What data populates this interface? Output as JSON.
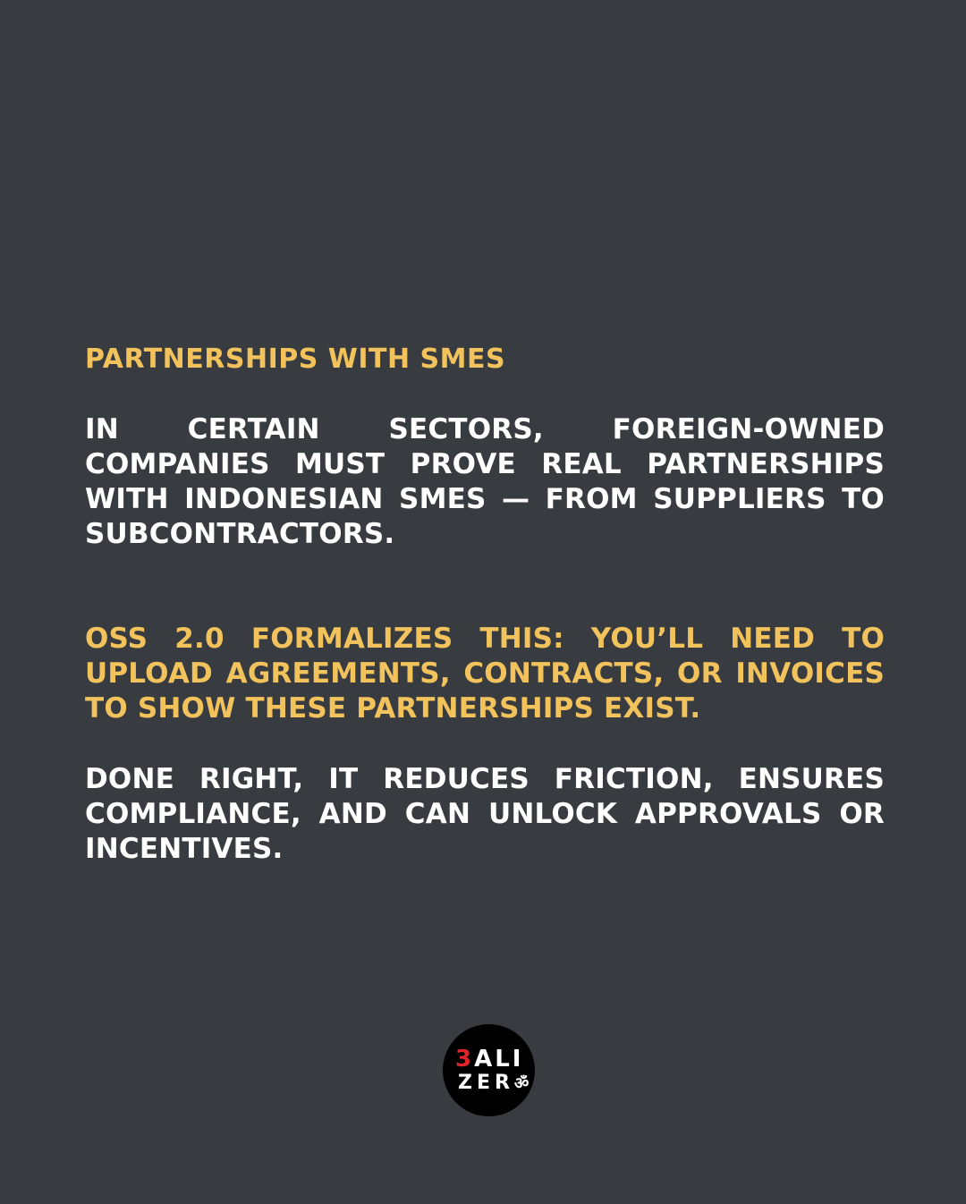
{
  "slide": {
    "heading": "PARTNERSHIPS WITH SMES",
    "paragraph1": "IN CERTAIN SECTORS, FOREIGN-OWNED COMPANIES MUST PROVE REAL PARTNERSHIPS WITH INDONESIAN SMES — FROM SUPPLIERS TO SUBCONTRACTORS.",
    "paragraph2": "OSS 2.0 FORMALIZES THIS: YOU’LL NEED TO UPLOAD AGREEMENTS, CONTRACTS, OR INVOICES TO SHOW THESE PARTNERSHIPS EXIST.",
    "paragraph3": "DONE RIGHT, IT REDUCES FRICTION, ENSURES COMPLIANCE, AND CAN UNLOCK APPROVALS OR INCENTIVES."
  },
  "logo": {
    "first_char": "3",
    "line1_rest": "ALI",
    "line2": "ZER",
    "om_glyph": "ॐ"
  },
  "colors": {
    "background": "#383b3f",
    "accent": "#f2c35c",
    "text": "#ffffff",
    "logo_red": "#e0242b"
  }
}
